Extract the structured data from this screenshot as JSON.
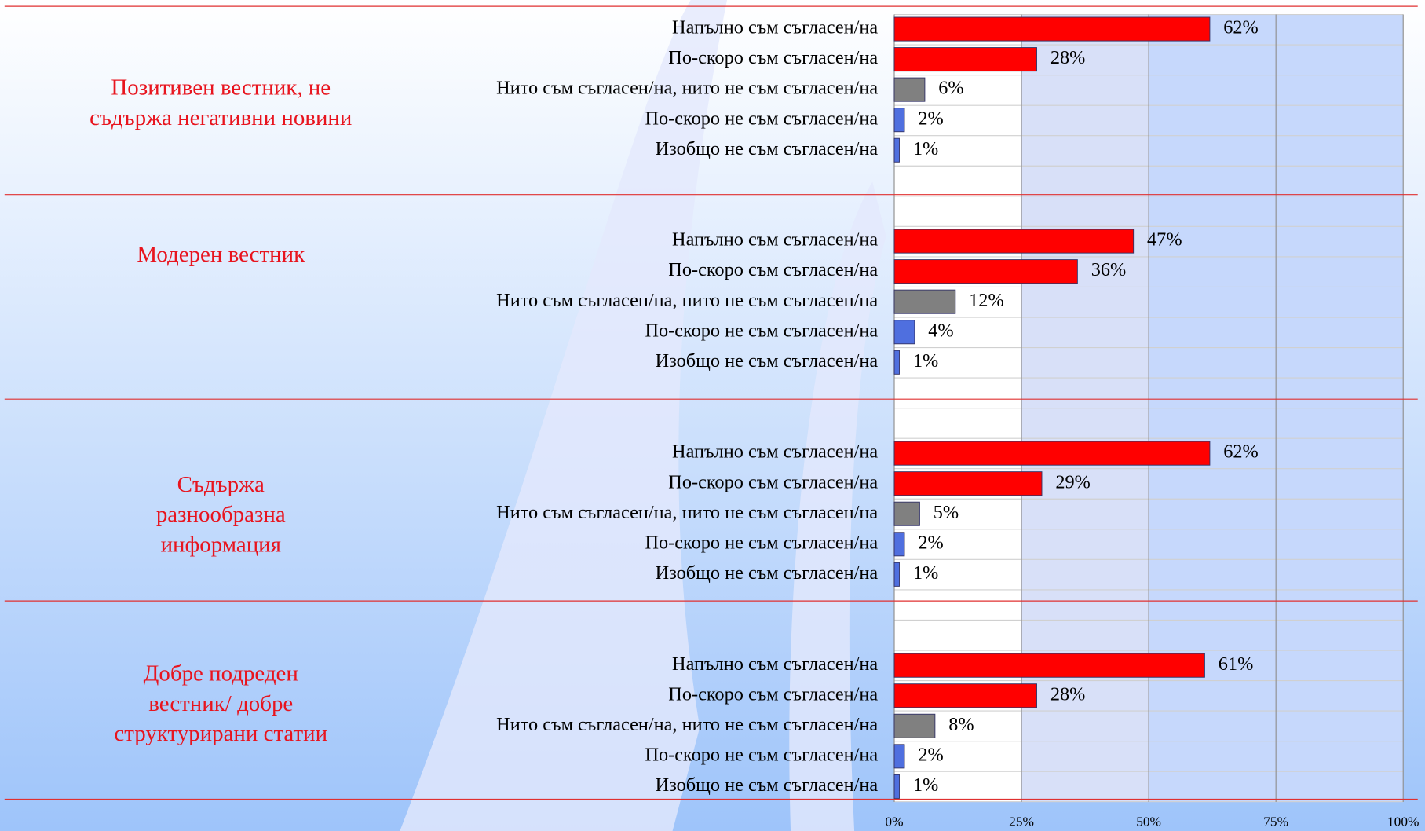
{
  "chart_data": {
    "type": "bar",
    "categories": [
      "Напълно съм съгласен/на",
      "По-скоро съм съгласен/на",
      "Нито съм съгласен/на, нито не съм съгласен/на",
      "По-скоро не съм съгласен/на",
      "Изобщо не съм съгласен/на"
    ],
    "colors": [
      "#ff0000",
      "#ff0000",
      "#808080",
      "#4f6fdf",
      "#4f6fdf"
    ],
    "groups": [
      {
        "name": [
          "Позитивен вестник, не",
          "съдържа негативни новини"
        ],
        "values": [
          62,
          28,
          6,
          2,
          1
        ],
        "value_labels": [
          "62%",
          "28%",
          "6%",
          "2%",
          "1%"
        ]
      },
      {
        "name": [
          "Модерен вестник"
        ],
        "values": [
          47,
          36,
          12,
          4,
          1
        ],
        "value_labels": [
          "47%",
          "36%",
          "12%",
          "4%",
          "1%"
        ]
      },
      {
        "name": [
          "Съдържа",
          "разнообразна",
          "информация"
        ],
        "values": [
          62,
          29,
          5,
          2,
          1
        ],
        "value_labels": [
          "62%",
          "29%",
          "5%",
          "2%",
          "1%"
        ]
      },
      {
        "name": [
          "Добре подреден",
          "вестник/ добре",
          "структурирани статии"
        ],
        "values": [
          61,
          28,
          8,
          2,
          1
        ],
        "value_labels": [
          "61%",
          "28%",
          "8%",
          "2%",
          "1%"
        ]
      }
    ],
    "xlim": [
      0,
      100
    ],
    "xticks": [
      {
        "value": 0,
        "label": "0%"
      },
      {
        "value": 25,
        "label": "25%"
      },
      {
        "value": 50,
        "label": "50%"
      },
      {
        "value": 75,
        "label": "75%"
      },
      {
        "value": 100,
        "label": "100%"
      }
    ],
    "grid": true
  }
}
